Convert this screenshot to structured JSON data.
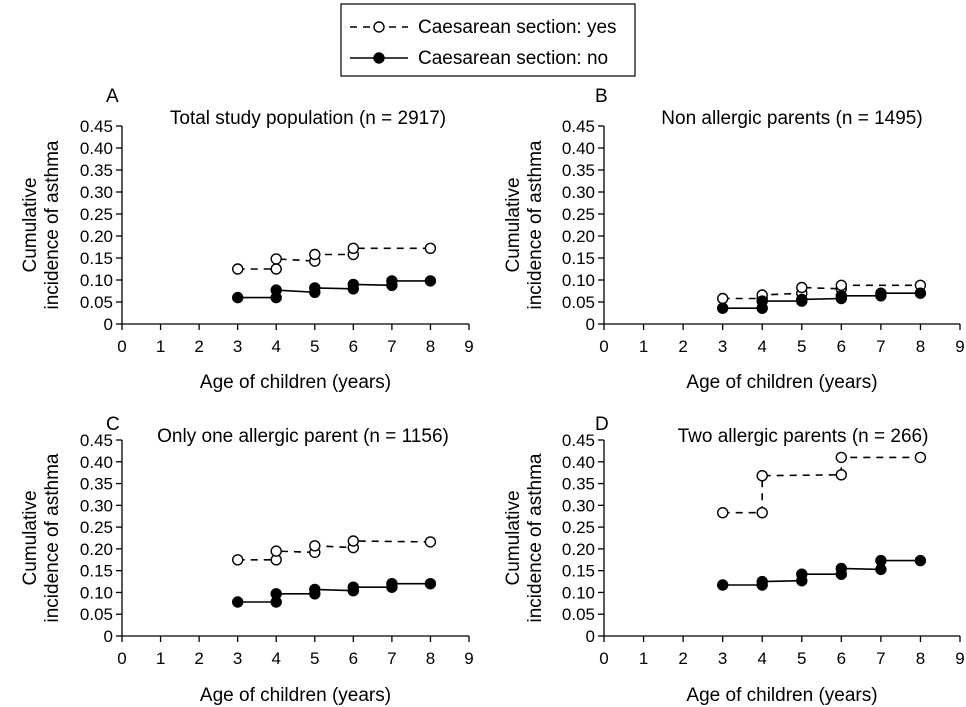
{
  "legend": {
    "placement": "top-center",
    "entries": [
      {
        "label": "Caesarean section: yes",
        "marker": "open-circle",
        "line": "dashed"
      },
      {
        "label": "Caesarean section: no",
        "marker": "filled-circle",
        "line": "solid"
      }
    ]
  },
  "chart_data": [
    {
      "type": "line",
      "panel": "A",
      "title": "Total study population (n = 2917)",
      "xlabel": "Age of children (years)",
      "ylabel": "Cumulative incidence of asthma",
      "xlim": [
        0,
        9
      ],
      "ylim": [
        0,
        0.45
      ],
      "x_ticks": [
        "0",
        "1",
        "2",
        "3",
        "4",
        "5",
        "6",
        "7",
        "8",
        "9"
      ],
      "y_ticks": [
        "0",
        "0.05",
        "0.10",
        "0.15",
        "0.20",
        "0.25",
        "0.30",
        "0.35",
        "0.40",
        "0.45"
      ],
      "grid": false,
      "series": [
        {
          "name": "Caesarean section: yes",
          "x": [
            3,
            4,
            4,
            5,
            5,
            6,
            6,
            8
          ],
          "y": [
            0.125,
            0.125,
            0.148,
            0.143,
            0.158,
            0.158,
            0.172,
            0.172
          ]
        },
        {
          "name": "Caesarean section: no",
          "x": [
            3,
            4,
            4,
            5,
            5,
            6,
            6,
            7,
            7,
            8
          ],
          "y": [
            0.06,
            0.06,
            0.077,
            0.072,
            0.082,
            0.08,
            0.09,
            0.088,
            0.098,
            0.098
          ]
        }
      ]
    },
    {
      "type": "line",
      "panel": "B",
      "title": "Non allergic parents (n = 1495)",
      "xlabel": "Age of children (years)",
      "ylabel": "Cumulative incidence of asthma",
      "xlim": [
        0,
        9
      ],
      "ylim": [
        0,
        0.45
      ],
      "x_ticks": [
        "0",
        "1",
        "2",
        "3",
        "4",
        "5",
        "6",
        "7",
        "8",
        "9"
      ],
      "y_ticks": [
        "0",
        "0.05",
        "0.10",
        "0.15",
        "0.20",
        "0.25",
        "0.30",
        "0.35",
        "0.40",
        "0.45"
      ],
      "grid": false,
      "series": [
        {
          "name": "Caesarean section: yes",
          "x": [
            3,
            4,
            4,
            5,
            5,
            6,
            6,
            8
          ],
          "y": [
            0.058,
            0.058,
            0.066,
            0.07,
            0.083,
            0.08,
            0.088,
            0.088
          ]
        },
        {
          "name": "Caesarean section: no",
          "x": [
            3,
            4,
            4,
            5,
            5,
            6,
            6,
            7,
            7,
            8
          ],
          "y": [
            0.036,
            0.036,
            0.052,
            0.052,
            0.056,
            0.058,
            0.064,
            0.064,
            0.07,
            0.07
          ]
        }
      ]
    },
    {
      "type": "line",
      "panel": "C",
      "title": "Only one allergic parent (n = 1156)",
      "xlabel": "Age of children (years)",
      "ylabel": "Cumulative incidence of asthma",
      "xlim": [
        0,
        9
      ],
      "ylim": [
        0,
        0.45
      ],
      "x_ticks": [
        "0",
        "1",
        "2",
        "3",
        "4",
        "5",
        "6",
        "7",
        "8",
        "9"
      ],
      "y_ticks": [
        "0",
        "0.05",
        "0.10",
        "0.15",
        "0.20",
        "0.25",
        "0.30",
        "0.35",
        "0.40",
        "0.45"
      ],
      "grid": false,
      "series": [
        {
          "name": "Caesarean section: yes",
          "x": [
            3,
            4,
            4,
            5,
            5,
            6,
            6,
            8
          ],
          "y": [
            0.175,
            0.175,
            0.195,
            0.192,
            0.207,
            0.203,
            0.218,
            0.216
          ]
        },
        {
          "name": "Caesarean section: no",
          "x": [
            3,
            4,
            4,
            5,
            5,
            6,
            6,
            7,
            7,
            8
          ],
          "y": [
            0.078,
            0.078,
            0.097,
            0.097,
            0.107,
            0.104,
            0.112,
            0.112,
            0.12,
            0.12
          ]
        }
      ]
    },
    {
      "type": "line",
      "panel": "D",
      "title": "Two allergic parents (n = 266)",
      "xlabel": "Age of children (years)",
      "ylabel": "Cumulative incidence of asthma",
      "xlim": [
        0,
        9
      ],
      "ylim": [
        0,
        0.45
      ],
      "x_ticks": [
        "0",
        "1",
        "2",
        "3",
        "4",
        "5",
        "6",
        "7",
        "8",
        "9"
      ],
      "y_ticks": [
        "0",
        "0.05",
        "0.10",
        "0.15",
        "0.20",
        "0.25",
        "0.30",
        "0.35",
        "0.40",
        "0.45"
      ],
      "grid": false,
      "series": [
        {
          "name": "Caesarean section: yes",
          "x": [
            3,
            4,
            4,
            6,
            6,
            8
          ],
          "y": [
            0.283,
            0.283,
            0.368,
            0.37,
            0.41,
            0.41
          ]
        },
        {
          "name": "Caesarean section: no",
          "x": [
            3,
            4,
            4,
            5,
            5,
            6,
            6,
            7,
            7,
            8
          ],
          "y": [
            0.117,
            0.117,
            0.125,
            0.127,
            0.142,
            0.142,
            0.155,
            0.153,
            0.173,
            0.173
          ]
        }
      ]
    }
  ]
}
